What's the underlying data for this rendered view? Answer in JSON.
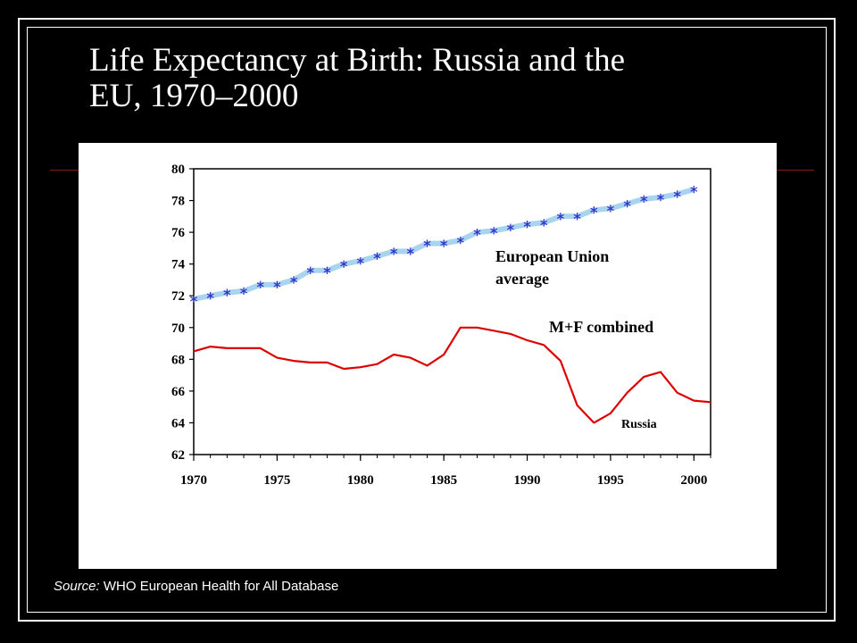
{
  "slide": {
    "title_line1": "Life Expectancy at Birth:  Russia and the",
    "title_line2": "EU, 1970–2000",
    "source_label": "Source:",
    "source_text": " WHO European Health for All Database",
    "colors": {
      "background": "#000000",
      "text": "#ffffff",
      "rule": "#8b1a1a"
    }
  },
  "chart_data": {
    "type": "line",
    "title": "",
    "xlabel": "",
    "ylabel": "",
    "xlim": [
      1970,
      2001
    ],
    "ylim": [
      62,
      80
    ],
    "x_ticks": [
      1970,
      1975,
      1980,
      1985,
      1990,
      1995,
      2000
    ],
    "y_ticks": [
      62,
      64,
      66,
      68,
      70,
      72,
      74,
      76,
      78,
      80
    ],
    "grid": false,
    "annotations": {
      "eu_line1": "European Union",
      "eu_line2": "average",
      "mf": "M+F combined",
      "russia": "Russia"
    },
    "series": [
      {
        "color": "#3232c8",
        "band_color": "#a8d4f0",
        "marker": "asterisk",
        "x": [
          1970,
          1971,
          1972,
          1973,
          1974,
          1975,
          1976,
          1977,
          1978,
          1979,
          1980,
          1981,
          1982,
          1983,
          1984,
          1985,
          1986,
          1987,
          1988,
          1989,
          1990,
          1991,
          1992,
          1993,
          1994,
          1995,
          1996,
          1997,
          1998,
          1999,
          2000
        ],
        "y": [
          71.8,
          72.0,
          72.2,
          72.3,
          72.7,
          72.7,
          73.0,
          73.6,
          73.6,
          74.0,
          74.2,
          74.5,
          74.8,
          74.8,
          75.3,
          75.3,
          75.5,
          76.0,
          76.1,
          76.3,
          76.5,
          76.6,
          77.0,
          77.0,
          77.4,
          77.5,
          77.8,
          78.1,
          78.2,
          78.4,
          78.7
        ]
      },
      {
        "color": "#dd0000",
        "marker": "none",
        "x": [
          1970,
          1971,
          1972,
          1973,
          1974,
          1975,
          1976,
          1977,
          1978,
          1979,
          1980,
          1981,
          1982,
          1983,
          1984,
          1985,
          1986,
          1987,
          1988,
          1989,
          1990,
          1991,
          1992,
          1993,
          1994,
          1995,
          1996,
          1997,
          1998,
          1999,
          2000,
          2001
        ],
        "y": [
          68.5,
          68.8,
          68.7,
          68.7,
          68.7,
          68.1,
          67.9,
          67.8,
          67.8,
          67.4,
          67.5,
          67.7,
          68.3,
          68.1,
          67.6,
          68.3,
          70.0,
          70.0,
          69.8,
          69.6,
          69.2,
          68.9,
          67.9,
          65.1,
          64.0,
          64.6,
          65.9,
          66.9,
          67.2,
          65.9,
          65.4,
          65.3
        ]
      }
    ]
  }
}
